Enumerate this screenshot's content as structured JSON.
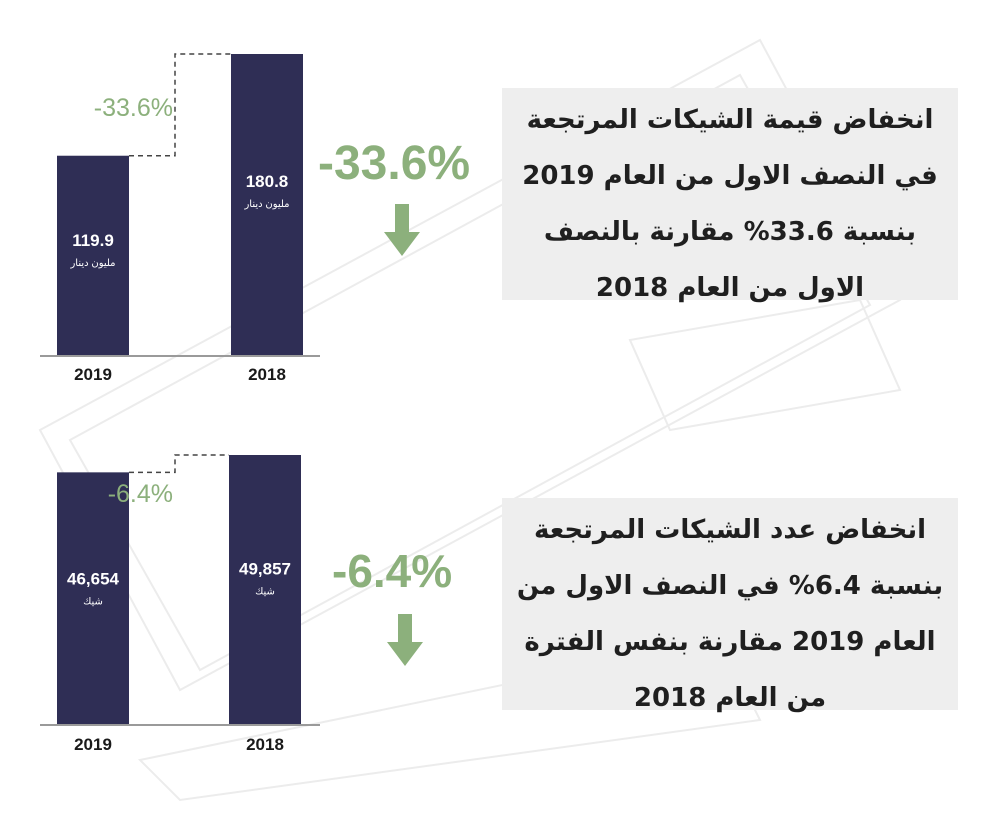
{
  "colors": {
    "bar": "#2f2e55",
    "accent": "#8cb07c",
    "axis": "#9a9a9a",
    "text_box_bg": "#eeeeee"
  },
  "panels": [
    {
      "change_label": "-33.6%",
      "description": "انخفاض قيمة الشيكات المرتجعة في النصف الاول من العام 2019 بنسبة 33.6% مقارنة بالنصف الاول من العام 2018",
      "arrow_icon": "arrow-down-icon"
    },
    {
      "change_label": "-6.4%",
      "description": "انخفاض عدد الشيكات المرتجعة بنسبة 6.4% في النصف الاول من العام 2019 مقارنة بنفس الفترة من العام 2018",
      "arrow_icon": "arrow-down-icon"
    }
  ],
  "chart_data": [
    {
      "type": "bar",
      "categories": [
        "2019",
        "2018"
      ],
      "values": [
        119.9,
        180.8
      ],
      "value_labels": [
        "119.9",
        "180.8"
      ],
      "unit": "مليون دينار",
      "change": "-33.6%",
      "ylim": [
        0,
        180.8
      ]
    },
    {
      "type": "bar",
      "categories": [
        "2019",
        "2018"
      ],
      "values": [
        46654,
        49857
      ],
      "value_labels": [
        "46,654",
        "49,857"
      ],
      "unit": "شيك",
      "change": "-6.4%",
      "ylim": [
        0,
        49857
      ]
    }
  ]
}
